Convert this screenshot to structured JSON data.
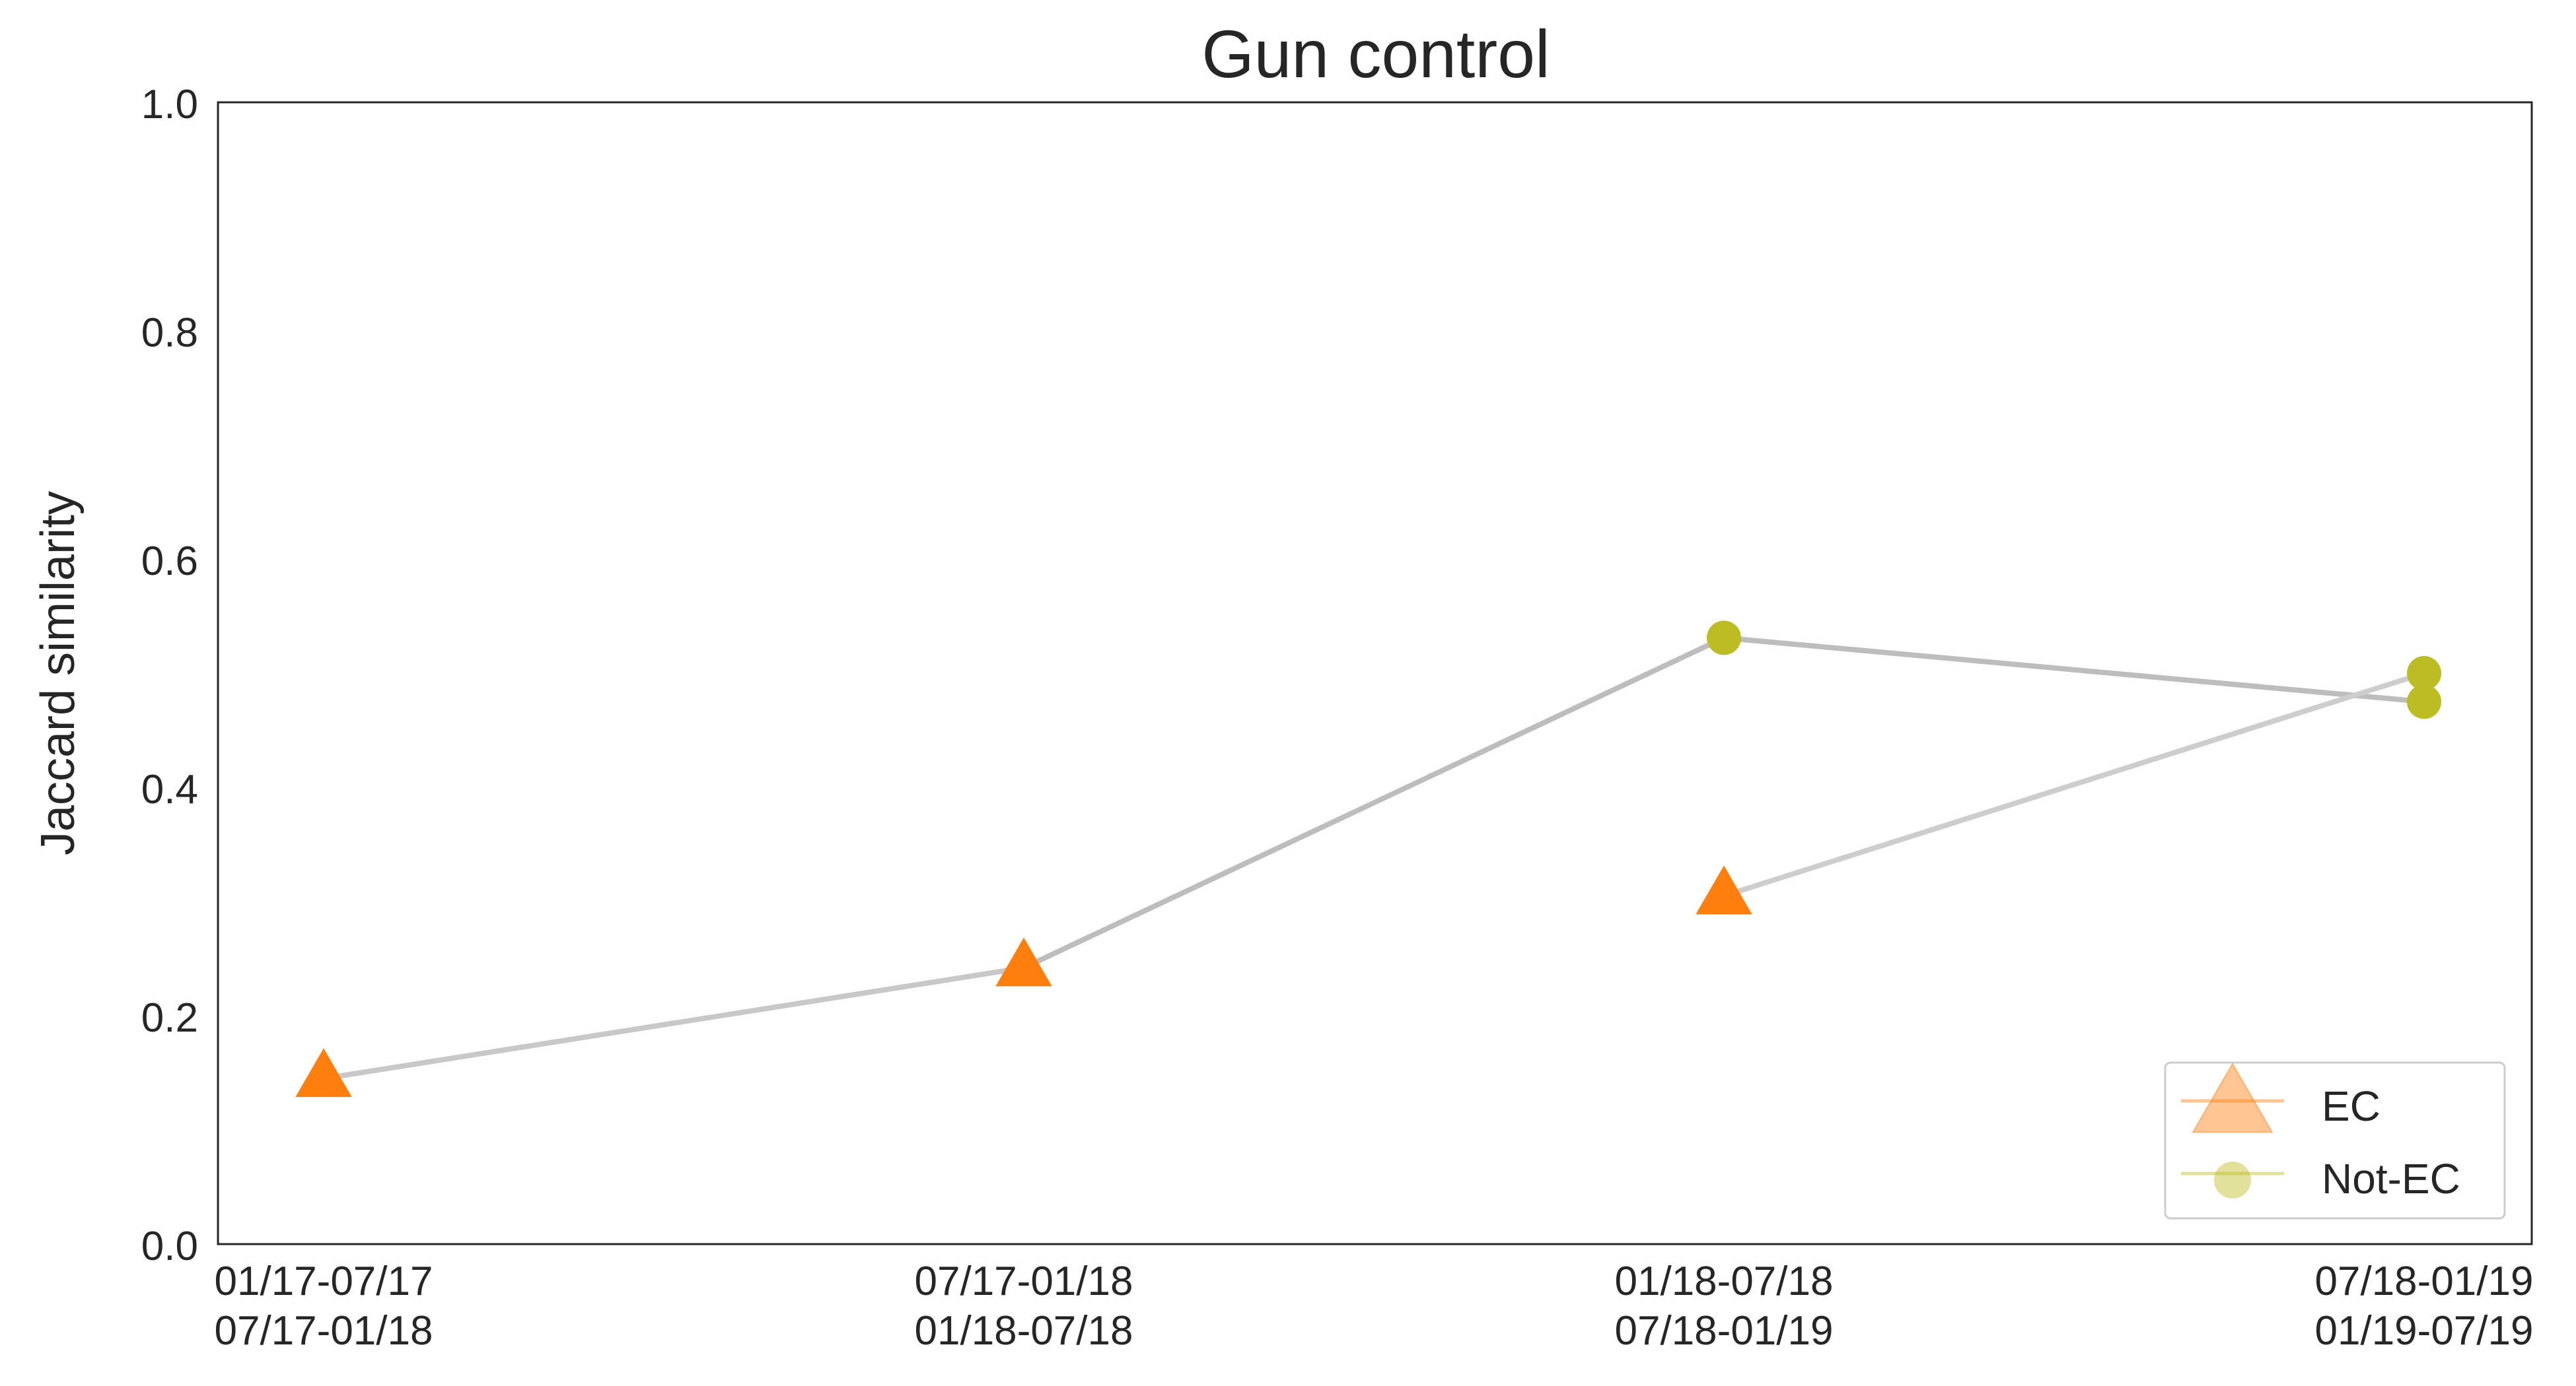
{
  "chart_data": {
    "type": "line",
    "title": "Gun control",
    "xlabel": "",
    "ylabel": "Jaccard similarity",
    "ylim": [
      0.0,
      1.0
    ],
    "yticks": [
      "0.0",
      "0.2",
      "0.4",
      "0.6",
      "0.8",
      "1.0"
    ],
    "categories": [
      [
        "01/17-07/17",
        "07/17-01/18"
      ],
      [
        "07/17-01/18",
        "01/18-07/18"
      ],
      [
        "01/18-07/18",
        "07/18-01/19"
      ],
      [
        "07/18-01/19",
        "01/19-07/19"
      ]
    ],
    "grid": false,
    "legend": "lower-right",
    "lines": [
      {
        "color": "#c8c8c8",
        "points": [
          {
            "x": 0,
            "y": 0.145,
            "group": "EC"
          },
          {
            "x": 1,
            "y": 0.242,
            "group": "EC"
          }
        ]
      },
      {
        "color": "#bdbdbd",
        "points": [
          {
            "x": 1,
            "y": 0.242,
            "group": "EC"
          },
          {
            "x": 2,
            "y": 0.531,
            "group": "Not-EC"
          },
          {
            "x": 3,
            "y": 0.475,
            "group": "Not-EC"
          }
        ]
      },
      {
        "color": "#cdcdcd",
        "points": [
          {
            "x": 2,
            "y": 0.305,
            "group": "EC"
          },
          {
            "x": 3,
            "y": 0.5,
            "group": "Not-EC"
          }
        ]
      }
    ],
    "groups": [
      {
        "name": "EC",
        "marker": "triangle",
        "color": "#ff7f0e"
      },
      {
        "name": "Not-EC",
        "marker": "circle",
        "color": "#bcbd22"
      }
    ]
  }
}
